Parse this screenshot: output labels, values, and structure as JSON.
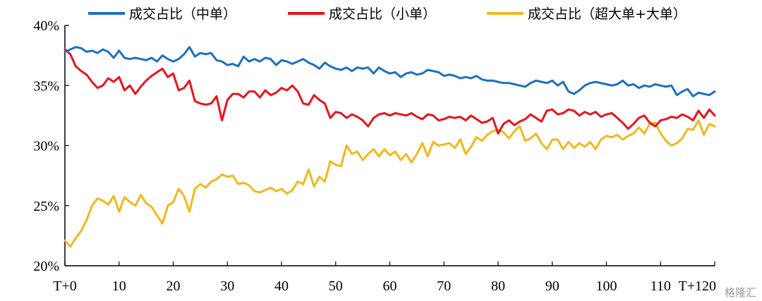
{
  "chart_data": {
    "type": "line",
    "title": "",
    "xlabel": "",
    "ylabel": "",
    "xlim": [
      0,
      120
    ],
    "ylim": [
      20,
      40
    ],
    "y_tick_labels": [
      "40%",
      "35%",
      "30%",
      "25%",
      "20%"
    ],
    "y_tick_values": [
      40,
      35,
      30,
      25,
      20
    ],
    "x_tick_labels": [
      "T+0",
      "10",
      "20",
      "30",
      "40",
      "50",
      "60",
      "70",
      "80",
      "90",
      "100",
      "110",
      "T+120"
    ],
    "x_tick_values": [
      0,
      10,
      20,
      30,
      40,
      50,
      60,
      70,
      80,
      90,
      100,
      110,
      120
    ],
    "grid": false,
    "legend_position": "top",
    "series": [
      {
        "name": "成交占比（中单）",
        "color": "#1F6FC0",
        "values": [
          37.8,
          38.0,
          38.2,
          38.1,
          37.8,
          37.9,
          37.7,
          38.0,
          37.8,
          37.3,
          37.9,
          37.3,
          37.2,
          37.3,
          37.2,
          37.1,
          37.3,
          37.0,
          37.5,
          37.2,
          37.0,
          37.2,
          37.6,
          38.2,
          37.4,
          37.7,
          37.6,
          37.7,
          37.1,
          37.0,
          36.7,
          36.8,
          36.6,
          37.4,
          37.0,
          37.2,
          37.0,
          37.3,
          37.2,
          36.7,
          37.1,
          37.0,
          36.8,
          37.0,
          37.2,
          36.9,
          36.7,
          36.4,
          36.9,
          36.6,
          36.4,
          36.3,
          36.5,
          36.2,
          36.5,
          36.4,
          36.5,
          36.0,
          36.5,
          36.2,
          36.0,
          36.1,
          35.7,
          36.0,
          36.1,
          35.9,
          36.0,
          36.3,
          36.2,
          36.1,
          35.8,
          35.9,
          35.8,
          35.6,
          35.7,
          35.6,
          35.8,
          35.5,
          35.4,
          35.4,
          35.3,
          35.2,
          35.2,
          35.1,
          35.0,
          34.9,
          35.2,
          35.4,
          35.3,
          35.2,
          35.4,
          35.0,
          35.3,
          34.5,
          34.3,
          34.6,
          35.0,
          35.2,
          35.3,
          35.2,
          35.1,
          35.0,
          35.1,
          35.4,
          35.0,
          35.1,
          34.8,
          35.0,
          34.9,
          35.1,
          35.0,
          34.9,
          35.0,
          34.2,
          34.5,
          34.7,
          34.1,
          34.4,
          34.3,
          34.2,
          34.5
        ]
      },
      {
        "name": "成交占比（小单）",
        "color": "#E8141E",
        "values": [
          38.0,
          37.6,
          36.6,
          36.2,
          35.9,
          35.3,
          34.8,
          35.0,
          35.6,
          35.3,
          35.7,
          34.6,
          35.0,
          34.3,
          34.9,
          35.4,
          35.8,
          36.1,
          36.4,
          35.7,
          36.0,
          34.6,
          34.8,
          35.4,
          33.7,
          33.5,
          33.4,
          33.5,
          34.1,
          32.1,
          33.8,
          34.3,
          34.3,
          34.0,
          34.5,
          34.5,
          34.0,
          34.6,
          34.2,
          34.4,
          34.8,
          34.6,
          35.0,
          34.5,
          33.5,
          33.4,
          34.2,
          33.8,
          33.5,
          32.3,
          32.8,
          32.7,
          32.3,
          32.6,
          32.4,
          32.1,
          31.6,
          32.3,
          32.6,
          32.7,
          32.5,
          32.7,
          32.6,
          32.5,
          32.7,
          32.4,
          32.2,
          32.6,
          32.5,
          32.1,
          32.2,
          32.4,
          32.3,
          32.4,
          32.1,
          32.5,
          32.2,
          31.9,
          32.0,
          32.3,
          31.0,
          31.8,
          32.1,
          31.7,
          32.0,
          32.2,
          32.6,
          32.3,
          32.0,
          32.9,
          33.0,
          32.6,
          32.7,
          33.0,
          32.9,
          32.5,
          32.8,
          32.6,
          32.8,
          32.4,
          32.6,
          32.7,
          32.3,
          31.9,
          31.4,
          31.8,
          32.3,
          32.5,
          31.9,
          31.6,
          32.1,
          32.2,
          32.4,
          32.3,
          32.6,
          32.4,
          32.1,
          32.9,
          32.3,
          33.0,
          32.5
        ]
      },
      {
        "name": "成交占比（超大单+大单）",
        "color": "#F2B81C",
        "values": [
          22.1,
          21.6,
          22.3,
          22.9,
          23.8,
          25.0,
          25.6,
          25.4,
          25.1,
          25.8,
          24.5,
          25.7,
          25.3,
          25.0,
          25.9,
          25.2,
          24.9,
          24.2,
          23.5,
          25.0,
          25.3,
          26.4,
          25.8,
          24.5,
          26.4,
          26.8,
          26.5,
          27.0,
          27.2,
          27.6,
          27.4,
          27.5,
          26.8,
          26.9,
          26.7,
          26.2,
          26.1,
          26.3,
          26.5,
          26.2,
          26.4,
          26.0,
          26.3,
          27.0,
          26.8,
          28.0,
          26.6,
          27.4,
          27.0,
          28.7,
          28.4,
          28.3,
          30.0,
          29.3,
          29.5,
          28.8,
          29.3,
          29.7,
          29.1,
          29.7,
          29.2,
          29.5,
          28.8,
          29.3,
          28.6,
          29.3,
          30.2,
          29.1,
          30.3,
          30.0,
          30.1,
          30.2,
          29.8,
          30.5,
          29.3,
          29.9,
          30.7,
          30.4,
          30.9,
          31.2,
          31.3,
          31.1,
          30.6,
          31.2,
          31.6,
          30.4,
          30.6,
          31.0,
          30.2,
          29.7,
          30.5,
          30.5,
          29.7,
          30.3,
          29.8,
          30.2,
          29.9,
          30.3,
          29.7,
          30.5,
          30.8,
          30.7,
          30.9,
          30.5,
          30.8,
          31.0,
          31.5,
          31.0,
          31.8,
          31.9,
          31.0,
          30.4,
          30.0,
          30.2,
          30.6,
          31.4,
          31.3,
          32.1,
          30.9,
          31.8,
          31.6
        ]
      }
    ]
  },
  "watermark": "格隆汇"
}
